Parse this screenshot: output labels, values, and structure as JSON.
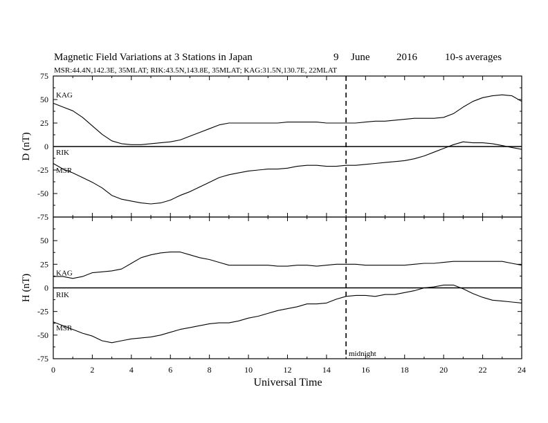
{
  "title": {
    "main": "Magnetic Field Variations at 3 Stations in Japan",
    "day": "9",
    "month": "June",
    "year": "2016",
    "resolution": "10-s averages"
  },
  "subtitle": "MSR:44.4N,142.3E, 35MLAT;  RIK:43.5N,143.8E, 35MLAT;  KAG:31.5N,130.7E, 22MLAT",
  "xlabel": "Universal Time",
  "annotation": "midnight",
  "colors": {
    "line": "#000000",
    "background": "#ffffff"
  },
  "chart_data": [
    {
      "type": "line",
      "panel": "D",
      "ylabel": "D (nT)",
      "xlim": [
        0,
        24
      ],
      "ylim": [
        -75,
        75
      ],
      "yticks": [
        75,
        50,
        25,
        0,
        -25,
        -50,
        -75
      ],
      "ytick_labels": [
        "75",
        "50",
        "25",
        "0",
        "-25",
        "-50",
        "-75"
      ],
      "x": [
        0,
        0.5,
        1,
        1.5,
        2,
        2.5,
        3,
        3.5,
        4,
        4.5,
        5,
        5.5,
        6,
        6.5,
        7,
        7.5,
        8,
        8.5,
        9,
        9.5,
        10,
        10.5,
        11,
        11.5,
        12,
        12.5,
        13,
        13.5,
        14,
        14.5,
        15,
        15.5,
        16,
        16.5,
        17,
        17.5,
        18,
        18.5,
        19,
        19.5,
        20,
        20.5,
        21,
        21.5,
        22,
        22.5,
        23,
        23.5,
        24
      ],
      "series": [
        {
          "name": "KAG",
          "values": [
            46,
            42,
            38,
            31,
            22,
            13,
            6,
            3,
            2,
            2,
            3,
            4,
            5,
            7,
            11,
            15,
            19,
            23,
            25,
            25,
            25,
            25,
            25,
            25,
            26,
            26,
            26,
            26,
            25,
            25,
            25,
            25,
            26,
            27,
            27,
            28,
            29,
            30,
            30,
            30,
            31,
            35,
            42,
            48,
            52,
            54,
            55,
            54,
            48
          ]
        },
        {
          "name": "RIK",
          "values": [
            0,
            0,
            0,
            0,
            0,
            0,
            0,
            0,
            0,
            0,
            0,
            0,
            0,
            0,
            0,
            0,
            0,
            0,
            0,
            0,
            0,
            0,
            0,
            0,
            0,
            0,
            0,
            0,
            0,
            0,
            0,
            0,
            0,
            0,
            0,
            0,
            0,
            0,
            0,
            0,
            0,
            0,
            0,
            0,
            0,
            0,
            0,
            0,
            0
          ]
        },
        {
          "name": "MSR",
          "values": [
            -18,
            -24,
            -28,
            -33,
            -38,
            -44,
            -52,
            -56,
            -58,
            -60,
            -61,
            -60,
            -57,
            -52,
            -48,
            -43,
            -38,
            -33,
            -30,
            -28,
            -26,
            -25,
            -24,
            -24,
            -23,
            -21,
            -20,
            -20,
            -21,
            -21,
            -20,
            -20,
            -19,
            -18,
            -17,
            -16,
            -15,
            -13,
            -10,
            -6,
            -2,
            2,
            5,
            4,
            4,
            3,
            1,
            -1,
            -3
          ]
        }
      ]
    },
    {
      "type": "line",
      "panel": "H",
      "ylabel": "H (nT)",
      "xlim": [
        0,
        24
      ],
      "ylim": [
        -75,
        75
      ],
      "yticks": [
        50,
        25,
        0,
        -25,
        -50,
        -75
      ],
      "ytick_labels": [
        "50",
        "25",
        "0",
        "-25",
        "-50",
        "-75"
      ],
      "x": [
        0,
        0.5,
        1,
        1.5,
        2,
        2.5,
        3,
        3.5,
        4,
        4.5,
        5,
        5.5,
        6,
        6.5,
        7,
        7.5,
        8,
        8.5,
        9,
        9.5,
        10,
        10.5,
        11,
        11.5,
        12,
        12.5,
        13,
        13.5,
        14,
        14.5,
        15,
        15.5,
        16,
        16.5,
        17,
        17.5,
        18,
        18.5,
        19,
        19.5,
        20,
        20.5,
        21,
        21.5,
        22,
        22.5,
        23,
        23.5,
        24
      ],
      "series": [
        {
          "name": "KAG",
          "values": [
            12,
            12,
            10,
            12,
            16,
            17,
            18,
            20,
            26,
            32,
            35,
            37,
            38,
            38,
            35,
            32,
            30,
            27,
            24,
            24,
            24,
            24,
            24,
            23,
            23,
            24,
            24,
            23,
            24,
            25,
            25,
            25,
            24,
            24,
            24,
            24,
            24,
            25,
            26,
            26,
            27,
            28,
            28,
            28,
            28,
            28,
            28,
            26,
            24
          ]
        },
        {
          "name": "RIK",
          "values": [
            0,
            0,
            0,
            0,
            0,
            0,
            0,
            0,
            0,
            0,
            0,
            0,
            0,
            0,
            0,
            0,
            0,
            0,
            0,
            0,
            0,
            0,
            0,
            0,
            0,
            0,
            0,
            0,
            0,
            0,
            0,
            0,
            0,
            0,
            0,
            0,
            0,
            0,
            0,
            0,
            0,
            0,
            0,
            0,
            0,
            0,
            0,
            0,
            0
          ]
        },
        {
          "name": "MSR",
          "values": [
            -36,
            -40,
            -44,
            -48,
            -51,
            -56,
            -58,
            -56,
            -54,
            -53,
            -52,
            -50,
            -47,
            -44,
            -42,
            -40,
            -38,
            -37,
            -37,
            -35,
            -32,
            -30,
            -27,
            -24,
            -22,
            -20,
            -17,
            -17,
            -16,
            -12,
            -9,
            -8,
            -8,
            -9,
            -7,
            -7,
            -5,
            -3,
            0,
            1,
            3,
            3,
            -1,
            -6,
            -10,
            -13,
            -14,
            -15,
            -16
          ]
        }
      ]
    }
  ],
  "xticks": [
    0,
    2,
    4,
    6,
    8,
    10,
    12,
    14,
    16,
    18,
    20,
    22,
    24
  ],
  "xtick_labels": [
    "0",
    "2",
    "4",
    "6",
    "8",
    "10",
    "12",
    "14",
    "16",
    "18",
    "20",
    "22",
    "24"
  ],
  "midnight_x": 15,
  "series_labels": {
    "D": [
      {
        "text": "KAG",
        "at_y": 55
      },
      {
        "text": "RIK",
        "at_y": -6
      },
      {
        "text": "MSR",
        "at_y": -25
      }
    ],
    "H": [
      {
        "text": "KAG",
        "at_y": 16
      },
      {
        "text": "RIK",
        "at_y": -7
      },
      {
        "text": "MSR",
        "at_y": -42
      }
    ]
  }
}
